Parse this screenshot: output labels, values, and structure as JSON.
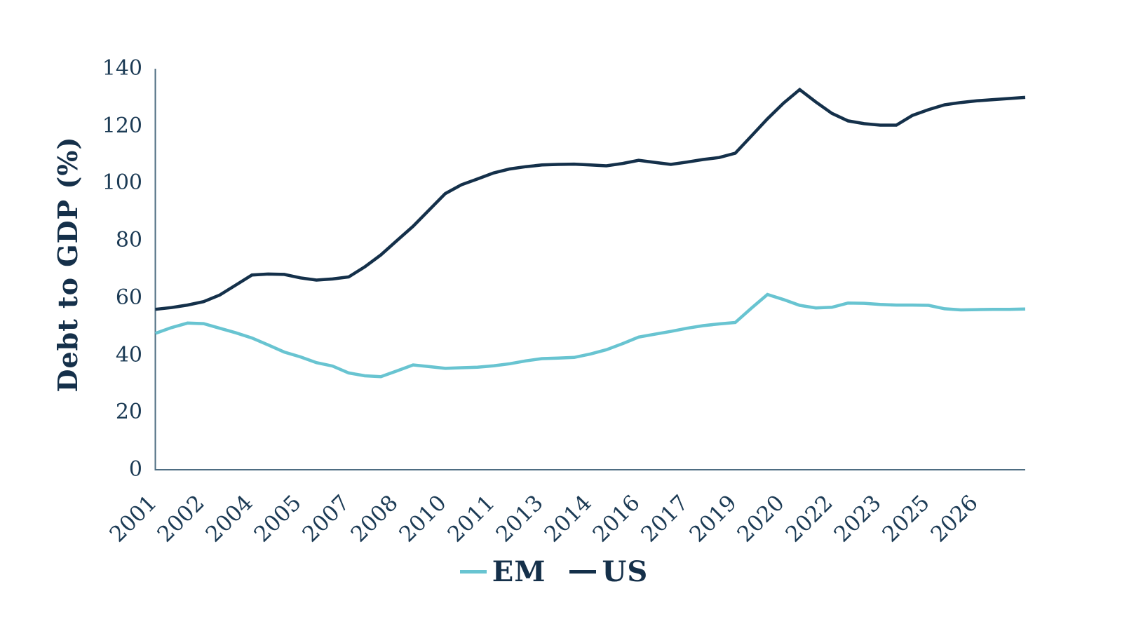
{
  "chart_data": {
    "type": "line",
    "title": "",
    "xlabel": "",
    "ylabel": "Debt to GDP (%)",
    "grid": false,
    "legend_position": "bottom-center",
    "ylim": [
      0,
      140
    ],
    "xlim": [
      2001,
      2028
    ],
    "yticks": [
      0,
      20,
      40,
      60,
      80,
      100,
      120,
      140
    ],
    "x_start": 2001,
    "x_step": 0.5,
    "x_ticks": [
      {
        "label": "2001",
        "year": 2001
      },
      {
        "label": "2002",
        "year": 2002.5
      },
      {
        "label": "2004",
        "year": 2004
      },
      {
        "label": "2005",
        "year": 2005.5
      },
      {
        "label": "2007",
        "year": 2007
      },
      {
        "label": "2008",
        "year": 2008.5
      },
      {
        "label": "2010",
        "year": 2010
      },
      {
        "label": "2011",
        "year": 2011.5
      },
      {
        "label": "2013",
        "year": 2013
      },
      {
        "label": "2014",
        "year": 2014.5
      },
      {
        "label": "2016",
        "year": 2016
      },
      {
        "label": "2017",
        "year": 2017.5
      },
      {
        "label": "2019",
        "year": 2019
      },
      {
        "label": "2020",
        "year": 2020.5
      },
      {
        "label": "2022",
        "year": 2022
      },
      {
        "label": "2023",
        "year": 2023.5
      },
      {
        "label": "2025",
        "year": 2025
      },
      {
        "label": "2026",
        "year": 2026.5
      }
    ],
    "series": [
      {
        "name": "EM",
        "color": "#68c4d1",
        "values": [
          47.6,
          49.6,
          51.2,
          51,
          49.4,
          47.8,
          46,
          43.6,
          41.1,
          39.4,
          37.4,
          36.2,
          33.8,
          32.8,
          32.5,
          34.5,
          36.6,
          36,
          35.4,
          35.6,
          35.8,
          36.3,
          37,
          38,
          38.8,
          39,
          39.2,
          40.4,
          41.9,
          44,
          46.3,
          47.3,
          48.3,
          49.4,
          50.3,
          50.9,
          51.4,
          56.4,
          61.2,
          59.4,
          57.4,
          56.5,
          56.7,
          58.2,
          58.1,
          57.7,
          57.5,
          57.5,
          57.4,
          56.2,
          55.8,
          55.9,
          56,
          56,
          56.1
        ]
      },
      {
        "name": "US",
        "color": "#14304a",
        "values": [
          56,
          56.6,
          57.5,
          58.7,
          61,
          64.5,
          68,
          68.3,
          68.2,
          67,
          66.2,
          66.6,
          67.3,
          70.8,
          75,
          80,
          85,
          90.7,
          96.4,
          99.5,
          101.5,
          103.6,
          105,
          105.8,
          106.4,
          106.6,
          106.7,
          106.4,
          106.1,
          106.9,
          108,
          107.3,
          106.6,
          107.4,
          108.3,
          109,
          110.5,
          116.5,
          122.5,
          128,
          132.7,
          128.4,
          124.4,
          121.8,
          120.8,
          120.3,
          120.3,
          123.7,
          125.7,
          127.4,
          128.2,
          128.8,
          129.2,
          129.6,
          130
        ]
      }
    ]
  },
  "axis": {
    "ylabel": "Debt to GDP (%)",
    "axis_color": "#4e6d82",
    "tick_text_color": "#1c3b55"
  },
  "legend": {
    "items": [
      {
        "label": "EM",
        "color": "#68c4d1"
      },
      {
        "label": "US",
        "color": "#14304a"
      }
    ]
  }
}
